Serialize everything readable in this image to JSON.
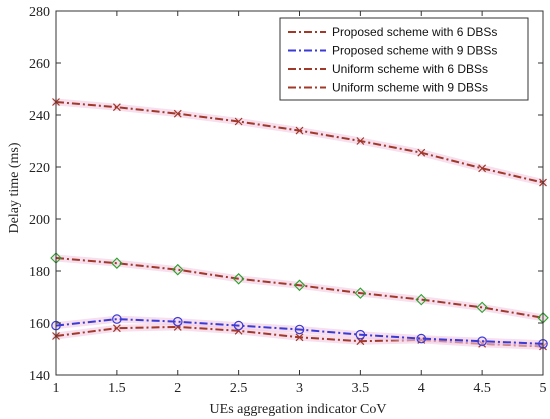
{
  "chart_data": {
    "type": "line",
    "title": "",
    "xlabel": "UEs aggregation indicator CoV",
    "ylabel": "Delay time (ms)",
    "x": [
      1,
      1.5,
      2,
      2.5,
      3,
      3.5,
      4,
      4.5,
      5
    ],
    "xlim": [
      1,
      5
    ],
    "ylim": [
      140,
      280
    ],
    "xticks": [
      "1",
      "1.5",
      "2",
      "2.5",
      "3",
      "3.5",
      "4",
      "4.5",
      "5"
    ],
    "yticks": [
      "140",
      "160",
      "180",
      "200",
      "220",
      "240",
      "260",
      "280"
    ],
    "grid": false,
    "legend_position": "top-right",
    "series": [
      {
        "name": "Proposed scheme with 6 DBSs",
        "color": "#a0392a",
        "marker": "x",
        "values": [
          155,
          158,
          158.5,
          157,
          154.5,
          153,
          153.5,
          152,
          151
        ]
      },
      {
        "name": "Proposed scheme with 9 DBSs",
        "color": "#3a3ad6",
        "marker": "circle",
        "values": [
          159,
          161.5,
          160.5,
          159,
          157.5,
          155.5,
          154,
          153,
          152
        ]
      },
      {
        "name": "Uniform scheme with 6 DBSs",
        "color": "#a0392a",
        "marker": "x",
        "values": [
          245,
          243,
          240.5,
          237.5,
          234,
          230,
          225.5,
          219.5,
          214
        ]
      },
      {
        "name": "Uniform scheme with 9 DBSs",
        "color": "#a0392a",
        "marker": "diamond",
        "values": [
          185,
          183,
          180.5,
          177,
          174.5,
          171.5,
          169,
          166,
          162
        ]
      }
    ]
  }
}
